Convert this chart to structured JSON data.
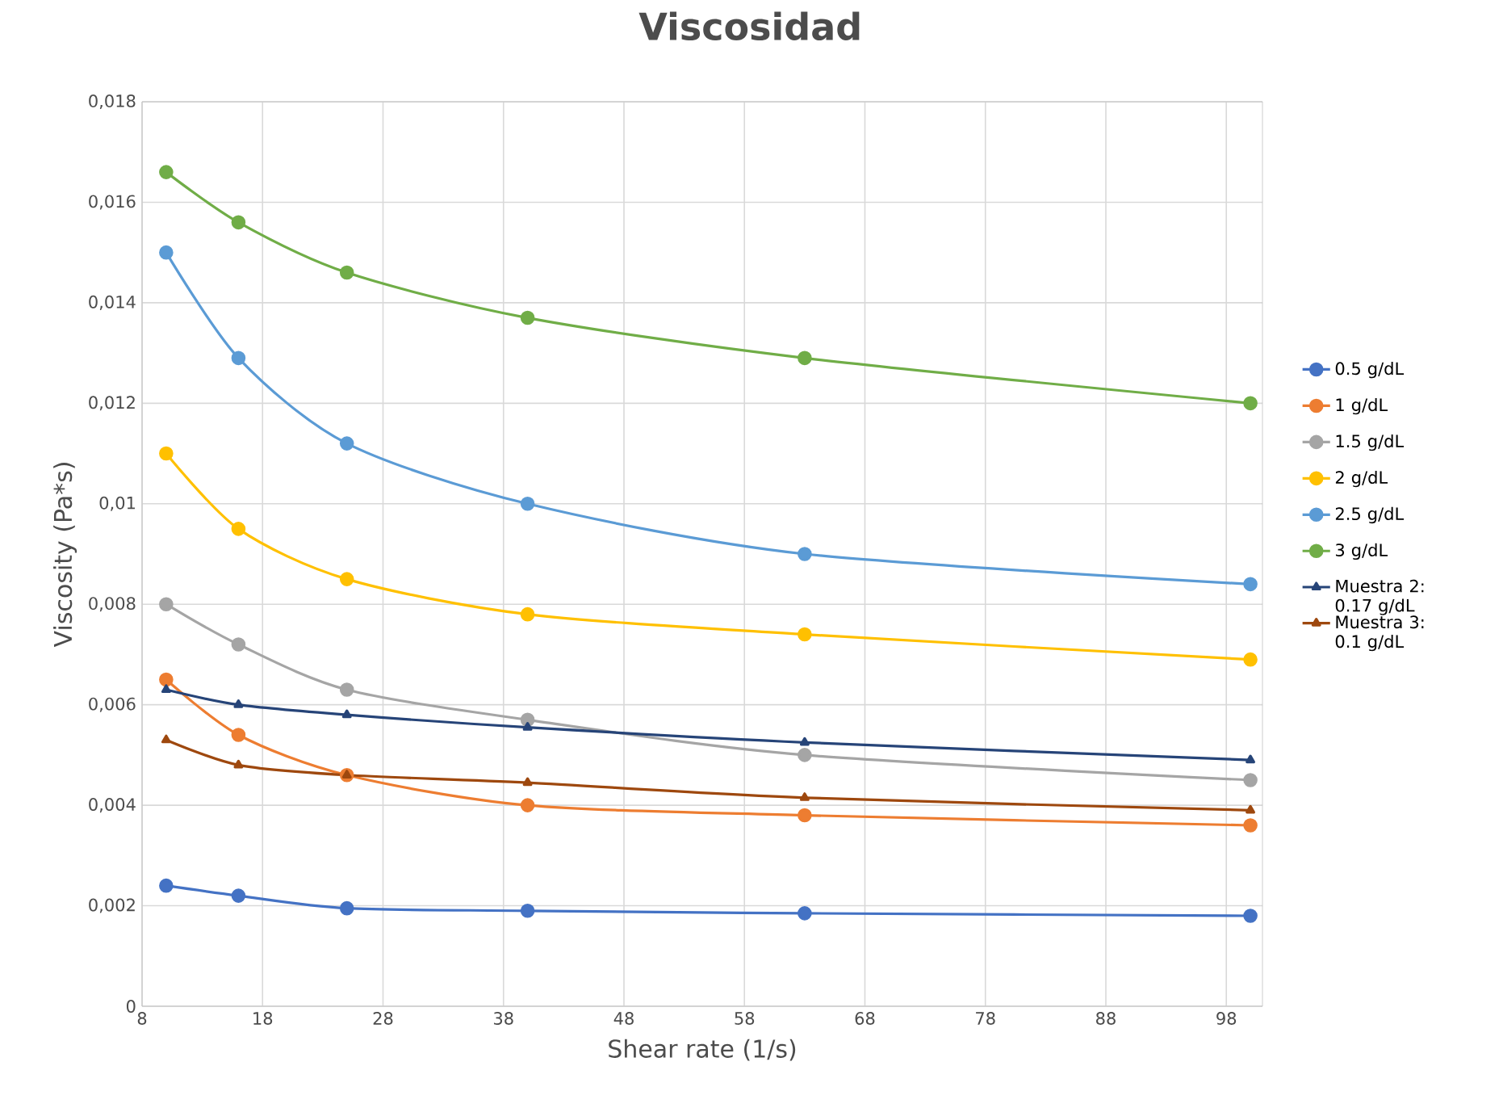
{
  "chart_data": {
    "type": "line",
    "title": "Viscosidad",
    "xlabel": "Shear rate (1/s)",
    "ylabel": "Viscosity (Pa*s)",
    "x": [
      10,
      16,
      25,
      40,
      63,
      100
    ],
    "xlim": [
      8,
      101
    ],
    "xticks": [
      8,
      18,
      28,
      38,
      48,
      58,
      68,
      78,
      88,
      98
    ],
    "ylim": [
      0,
      0.018
    ],
    "yticks": [
      0,
      {
        "value": 0.002,
        "label": "0,002"
      },
      {
        "value": 0.004,
        "label": "0,004"
      },
      {
        "value": 0.006,
        "label": "0,006"
      },
      {
        "value": 0.008,
        "label": "0,008"
      },
      {
        "value": 0.01,
        "label": "0,01"
      },
      {
        "value": 0.012,
        "label": "0,012"
      },
      {
        "value": 0.014,
        "label": "0,014"
      },
      {
        "value": 0.016,
        "label": "0,016"
      },
      {
        "value": 0.018,
        "label": "0,018"
      }
    ],
    "grid": true,
    "legend": "right",
    "marker": "circle",
    "line_style": "solid",
    "series": [
      {
        "name": "0.5 g/dL",
        "color": "#4472c4",
        "values": [
          0.0024,
          0.0022,
          0.00195,
          0.0019,
          0.00185,
          0.0018
        ]
      },
      {
        "name": "1 g/dL",
        "color": "#ed7d31",
        "values": [
          0.0065,
          0.0054,
          0.0046,
          0.004,
          0.0038,
          0.0036
        ]
      },
      {
        "name": "1.5 g/dL",
        "color": "#a5a5a5",
        "values": [
          0.008,
          0.0072,
          0.0063,
          0.0057,
          0.005,
          0.0045
        ]
      },
      {
        "name": "2 g/dL",
        "color": "#ffc000",
        "values": [
          0.011,
          0.0095,
          0.0085,
          0.0078,
          0.0074,
          0.0069
        ]
      },
      {
        "name": "2.5 g/dL",
        "color": "#5b9bd5",
        "values": [
          0.015,
          0.0129,
          0.0112,
          0.01,
          0.009,
          0.0084
        ]
      },
      {
        "name": "3 g/dL",
        "color": "#70ad47",
        "values": [
          0.0166,
          0.0156,
          0.0146,
          0.0137,
          0.0129,
          0.012
        ]
      },
      {
        "name": "Muestra 2: 0.17 g/dL",
        "color": "#264478",
        "marker": "triangle",
        "values": [
          0.0063,
          0.006,
          0.0058,
          0.00555,
          0.00525,
          0.0049
        ]
      },
      {
        "name": "Muestra 3: 0.1 g/dL",
        "color": "#9e480e",
        "marker": "triangle",
        "values": [
          0.0053,
          0.0048,
          0.0046,
          0.00445,
          0.00415,
          0.0039
        ]
      }
    ]
  }
}
